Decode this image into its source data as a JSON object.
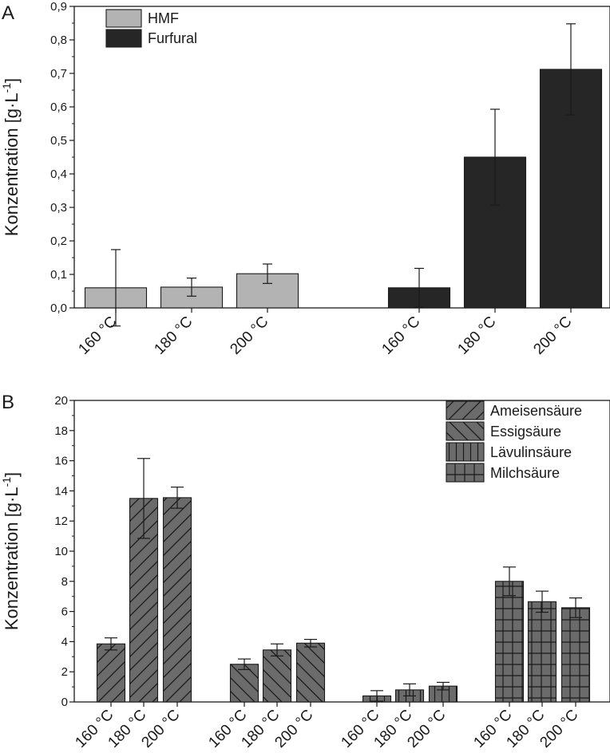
{
  "chart_data": [
    {
      "type": "bar",
      "panel": "A",
      "ylabel": "Konzentration [g·L",
      "ylabel_sup": "-1",
      "ylabel_end": "]",
      "ylim": [
        0,
        0.9
      ],
      "yticks": [
        "0,0",
        "0,1",
        "0,2",
        "0,3",
        "0,4",
        "0,5",
        "0,6",
        "0,7",
        "0,8",
        "0,9"
      ],
      "categories": [
        "160 °C",
        "180 °C",
        "200 °C"
      ],
      "legend_position": "top-left",
      "series": [
        {
          "name": "HMF",
          "color": "#b3b3b3",
          "values": [
            0.06,
            0.062,
            0.102
          ],
          "errors": [
            0.114,
            0.027,
            0.029
          ]
        },
        {
          "name": "Furfural",
          "color": "#262626",
          "values": [
            0.06,
            0.45,
            0.712
          ],
          "errors": [
            0.058,
            0.143,
            0.136
          ]
        }
      ]
    },
    {
      "type": "bar",
      "panel": "B",
      "ylabel": "Konzentration [g·L",
      "ylabel_sup": "-1",
      "ylabel_end": "]",
      "ylim": [
        0,
        20
      ],
      "yticks": [
        "0",
        "2",
        "4",
        "6",
        "8",
        "10",
        "12",
        "14",
        "16",
        "18",
        "20"
      ],
      "categories": [
        "160 °C",
        "180 °C",
        "200 °C"
      ],
      "legend_position": "top-right",
      "series": [
        {
          "name": "Ameisensäure",
          "color": "#6b6b6b",
          "pattern": "diagonal-forward",
          "values": [
            3.85,
            13.5,
            13.55
          ],
          "errors": [
            0.4,
            2.65,
            0.7
          ]
        },
        {
          "name": "Essigsäure",
          "color": "#6b6b6b",
          "pattern": "diagonal-backward",
          "values": [
            2.5,
            3.45,
            3.9
          ],
          "errors": [
            0.35,
            0.4,
            0.25
          ]
        },
        {
          "name": "Lävulinsäure",
          "color": "#6b6b6b",
          "pattern": "vertical",
          "values": [
            0.4,
            0.8,
            1.05
          ],
          "errors": [
            0.35,
            0.4,
            0.25
          ]
        },
        {
          "name": "Milchsäure",
          "color": "#6b6b6b",
          "pattern": "grid",
          "values": [
            8.0,
            6.65,
            6.25
          ],
          "errors": [
            0.95,
            0.7,
            0.65
          ]
        }
      ]
    }
  ]
}
